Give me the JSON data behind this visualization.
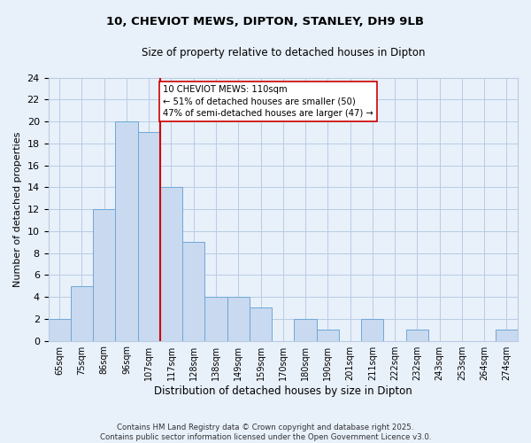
{
  "title": "10, CHEVIOT MEWS, DIPTON, STANLEY, DH9 9LB",
  "subtitle": "Size of property relative to detached houses in Dipton",
  "xlabel": "Distribution of detached houses by size in Dipton",
  "ylabel": "Number of detached properties",
  "footer_line1": "Contains HM Land Registry data © Crown copyright and database right 2025.",
  "footer_line2": "Contains public sector information licensed under the Open Government Licence v3.0.",
  "bar_labels": [
    "65sqm",
    "75sqm",
    "86sqm",
    "96sqm",
    "107sqm",
    "117sqm",
    "128sqm",
    "138sqm",
    "149sqm",
    "159sqm",
    "170sqm",
    "180sqm",
    "190sqm",
    "201sqm",
    "211sqm",
    "222sqm",
    "232sqm",
    "243sqm",
    "253sqm",
    "264sqm",
    "274sqm"
  ],
  "bar_values": [
    2,
    5,
    12,
    20,
    19,
    14,
    9,
    4,
    4,
    3,
    0,
    2,
    1,
    0,
    2,
    0,
    1,
    0,
    0,
    0,
    1
  ],
  "bar_color": "#c8d9f0",
  "bar_edge_color": "#6ea8d8",
  "grid_color": "#b8cce4",
  "background_color": "#e8f0fa",
  "property_line_x": 4.5,
  "annotation_text_line1": "10 CHEVIOT MEWS: 110sqm",
  "annotation_text_line2": "← 51% of detached houses are smaller (50)",
  "annotation_text_line3": "47% of semi-detached houses are larger (47) →",
  "red_line_color": "#cc0000",
  "ylim": [
    0,
    24
  ],
  "yticks": [
    0,
    2,
    4,
    6,
    8,
    10,
    12,
    14,
    16,
    18,
    20,
    22,
    24
  ]
}
